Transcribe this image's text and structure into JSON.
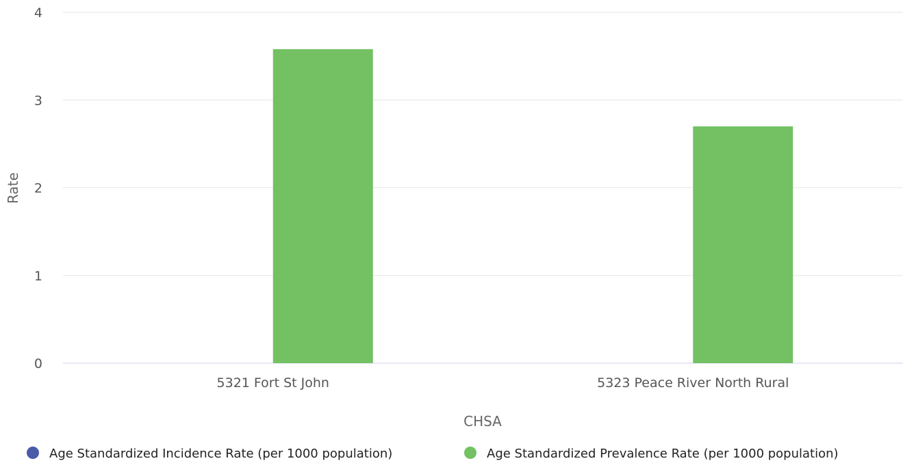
{
  "chart_data": {
    "type": "bar",
    "title": "",
    "xlabel": "CHSA",
    "ylabel": "Rate",
    "ylim": [
      0,
      4
    ],
    "yticks": [
      "0",
      "1",
      "2",
      "3",
      "4"
    ],
    "categories": [
      "5321 Fort St John",
      "5323 Peace River North Rural"
    ],
    "series": [
      {
        "name": "Age Standardized Incidence Rate (per 1000 population)",
        "color": "#4a5ba8",
        "values": [
          null,
          null
        ]
      },
      {
        "name": "Age Standardized Prevalence Rate (per 1000 population)",
        "color": "#73c163",
        "values": [
          3.58,
          2.7
        ]
      }
    ],
    "grid": true,
    "legend_position": "bottom"
  }
}
